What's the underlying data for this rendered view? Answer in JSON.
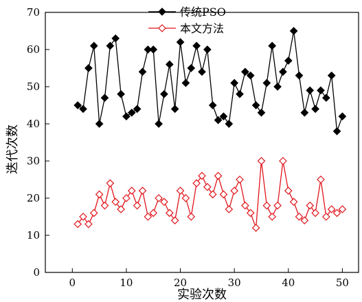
{
  "chart_data": {
    "type": "line",
    "xlabel": "实验次数",
    "ylabel": "迭代次数",
    "xlim": [
      -5,
      53
    ],
    "ylim": [
      0,
      70
    ],
    "xticks": [
      0,
      10,
      20,
      30,
      40,
      50
    ],
    "yticks": [
      0,
      10,
      20,
      30,
      40,
      50,
      60,
      70
    ],
    "legend_position": "top-center",
    "grid": false,
    "series": [
      {
        "name": "传统PSO",
        "color": "#000000",
        "marker": "filled-diamond",
        "x": [
          1,
          2,
          3,
          4,
          5,
          6,
          7,
          8,
          9,
          10,
          11,
          12,
          13,
          14,
          15,
          16,
          17,
          18,
          19,
          20,
          21,
          22,
          23,
          24,
          25,
          26,
          27,
          28,
          29,
          30,
          31,
          32,
          33,
          34,
          35,
          36,
          37,
          38,
          39,
          40,
          41,
          42,
          43,
          44,
          45,
          46,
          47,
          48,
          49,
          50
        ],
        "values": [
          45,
          44,
          55,
          61,
          40,
          47,
          61,
          63,
          48,
          42,
          43,
          44,
          54,
          60,
          60,
          40,
          48,
          56,
          44,
          62,
          51,
          55,
          61,
          54,
          60,
          45,
          41,
          42,
          40,
          51,
          48,
          54,
          53,
          45,
          43,
          51,
          61,
          50,
          54,
          57,
          65,
          53,
          43,
          49,
          44,
          49,
          47,
          53,
          38,
          42
        ]
      },
      {
        "name": "本文方法",
        "color": "#e0151b",
        "marker": "hollow-diamond",
        "x": [
          1,
          2,
          3,
          4,
          5,
          6,
          7,
          8,
          9,
          10,
          11,
          12,
          13,
          14,
          15,
          16,
          17,
          18,
          19,
          20,
          21,
          22,
          23,
          24,
          25,
          26,
          27,
          28,
          29,
          30,
          31,
          32,
          33,
          34,
          35,
          36,
          37,
          38,
          39,
          40,
          41,
          42,
          43,
          44,
          45,
          46,
          47,
          48,
          49,
          50
        ],
        "values": [
          13,
          15,
          13,
          16,
          21,
          18,
          24,
          19,
          17,
          20,
          22,
          18,
          22,
          15,
          16,
          20,
          19,
          16,
          14,
          22,
          20,
          15,
          24,
          26,
          23,
          21,
          26,
          21,
          17,
          22,
          25,
          18,
          16,
          12,
          30,
          18,
          15,
          18,
          30,
          22,
          19,
          15,
          14,
          18,
          16,
          25,
          15,
          17,
          16,
          17
        ]
      }
    ]
  }
}
